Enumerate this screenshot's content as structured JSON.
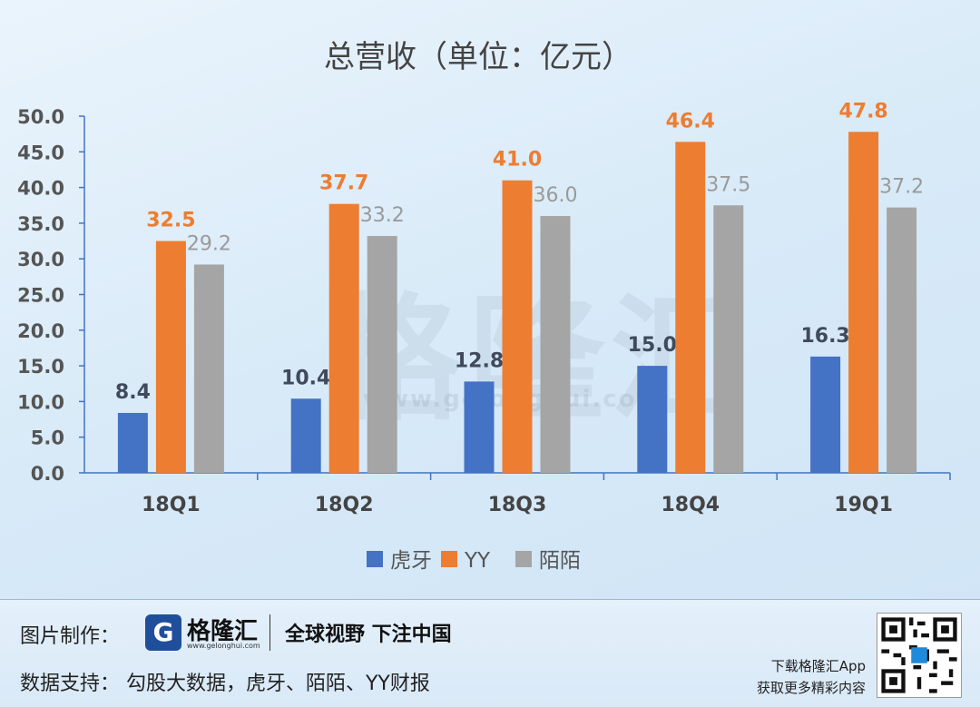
{
  "chart_data": {
    "type": "bar",
    "title": "总营收（单位：亿元）",
    "categories": [
      "18Q1",
      "18Q2",
      "18Q3",
      "18Q4",
      "19Q1"
    ],
    "series": [
      {
        "name": "虎牙",
        "color": "#4472c4",
        "label_color": "#404a5c",
        "values": [
          8.4,
          10.4,
          12.8,
          15.0,
          16.3
        ]
      },
      {
        "name": "YY",
        "color": "#ed7d31",
        "label_color": "#ed7d31",
        "values": [
          32.5,
          37.7,
          41.0,
          46.4,
          47.8
        ]
      },
      {
        "name": "陌陌",
        "color": "#a5a5a5",
        "label_color": "#9a9a9a",
        "values": [
          29.2,
          33.2,
          36.0,
          37.5,
          37.2
        ]
      }
    ],
    "ylim": [
      0,
      50
    ],
    "yticks": [
      "0.0",
      "5.0",
      "10.0",
      "15.0",
      "20.0",
      "25.0",
      "30.0",
      "35.0",
      "40.0",
      "45.0",
      "50.0"
    ],
    "value_labels": [
      [
        "8.4",
        "10.4",
        "12.8",
        "15.0",
        "16.3"
      ],
      [
        "32.5",
        "37.7",
        "41.0",
        "46.4",
        "47.8"
      ],
      [
        "29.2",
        "33.2",
        "36.0",
        "37.5",
        "37.2"
      ]
    ],
    "legend_position": "bottom",
    "grid": false
  },
  "watermark": {
    "brand": "格隆汇",
    "url": "www.gelonghui.com"
  },
  "footer": {
    "credit_label": "图片制作：",
    "logo_letter": "G",
    "logo_name": "格隆汇",
    "logo_url": "www.gelonghui.com",
    "slogan": "全球视野 下注中国",
    "source": "数据支持：  勾股大数据，虎牙、陌陌、YY财报",
    "app_line1": "下载格隆汇App",
    "app_line2": "获取更多精彩内容"
  }
}
